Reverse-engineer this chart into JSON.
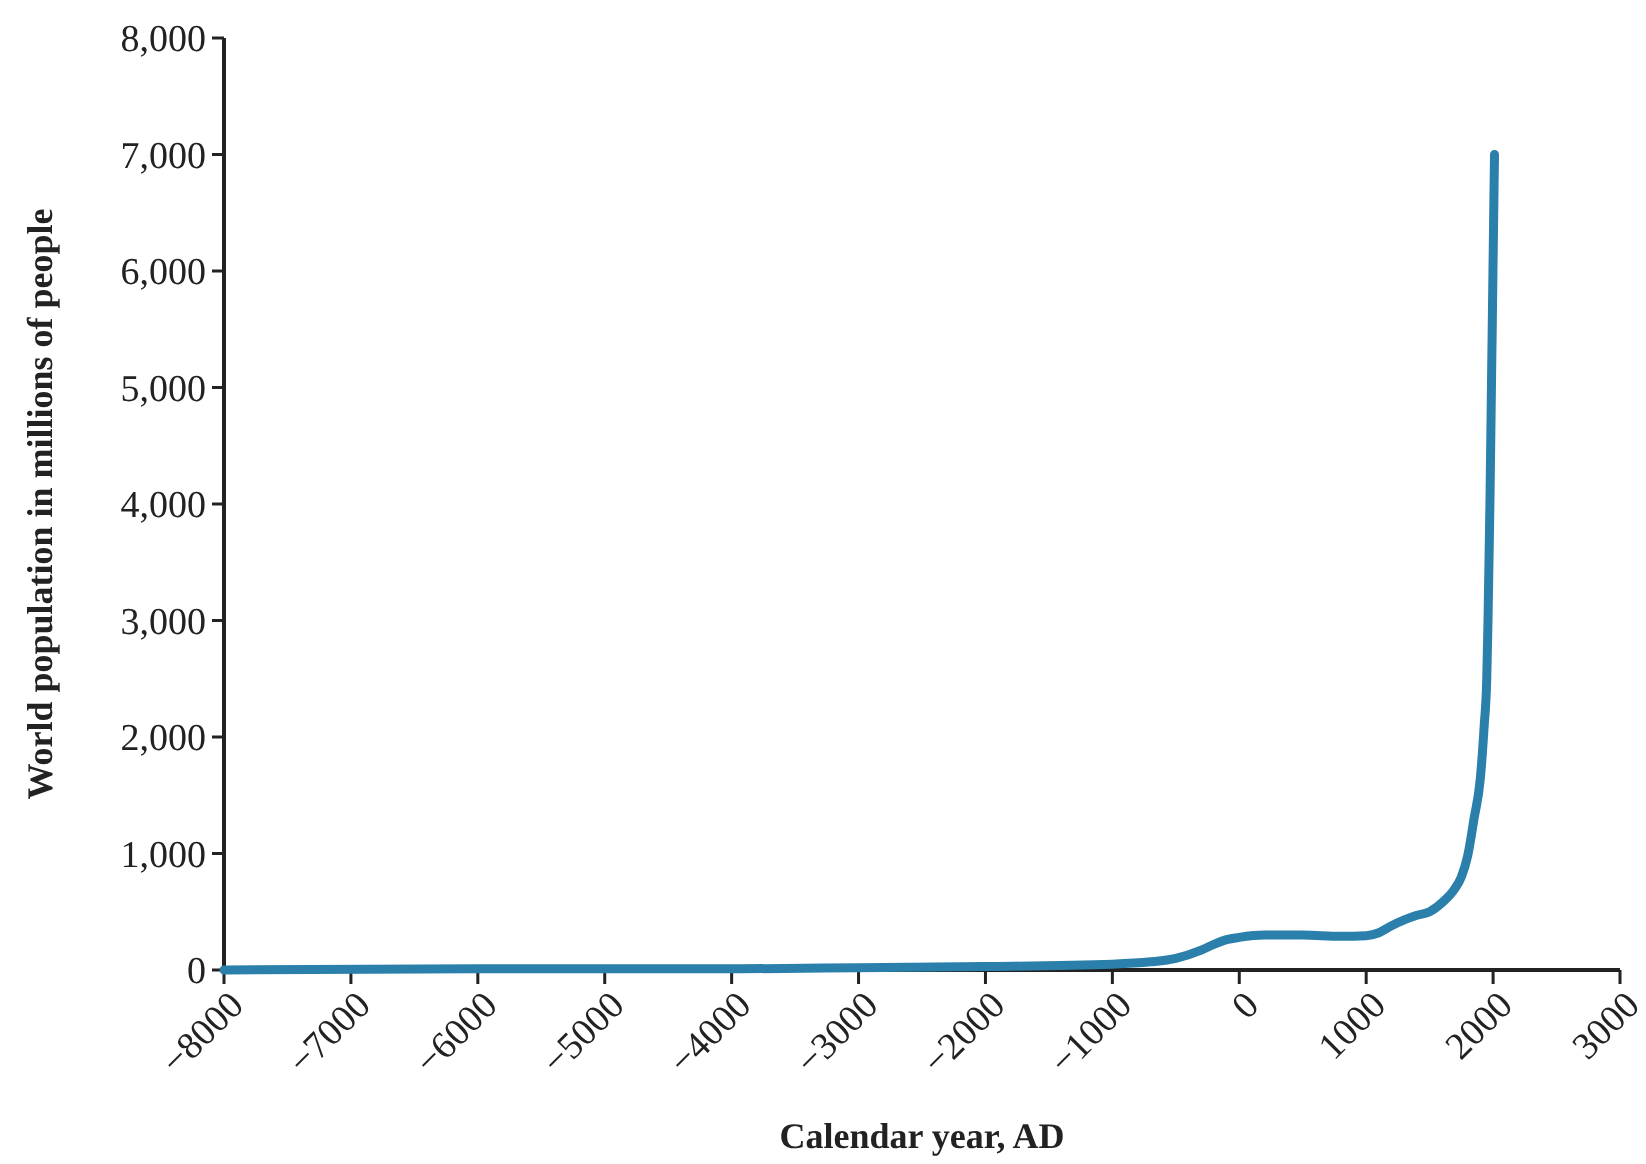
{
  "chart_data": {
    "type": "line",
    "xlabel": "Calendar year, AD",
    "ylabel": "World population in millions of people",
    "x": [
      -8000,
      -6000,
      -5000,
      -4000,
      -3000,
      -2000,
      -1000,
      -700,
      -500,
      -300,
      -200,
      -100,
      0,
      200,
      500,
      800,
      1000,
      1100,
      1200,
      1300,
      1400,
      1500,
      1600,
      1700,
      1750,
      1800,
      1850,
      1900,
      1930,
      1950,
      1960,
      1975,
      1987,
      1999,
      2011
    ],
    "series": [
      {
        "color": "#2a7fab",
        "values": [
          0,
          10,
          10,
          10,
          20,
          30,
          50,
          70,
          100,
          170,
          220,
          260,
          280,
          300,
          300,
          290,
          295,
          320,
          380,
          430,
          470,
          500,
          580,
          700,
          800,
          980,
          1300,
          1650,
          2100,
          2500,
          3000,
          4000,
          5000,
          6000,
          7000
        ]
      }
    ],
    "xlim": [
      -8000,
      3000
    ],
    "xticks": [
      {
        "value": -8000,
        "label": "−8000"
      },
      {
        "value": -7000,
        "label": "−7000"
      },
      {
        "value": -6000,
        "label": "−6000"
      },
      {
        "value": -5000,
        "label": "−5000"
      },
      {
        "value": -4000,
        "label": "−4000"
      },
      {
        "value": -3000,
        "label": "−3000"
      },
      {
        "value": -2000,
        "label": "−2000"
      },
      {
        "value": -1000,
        "label": "−1000"
      },
      0,
      1000,
      2000,
      3000
    ],
    "ylim": [
      0,
      8000
    ],
    "yticks": [
      0,
      {
        "value": 1000,
        "label": "1,000"
      },
      {
        "value": 2000,
        "label": "2,000"
      },
      {
        "value": 3000,
        "label": "3,000"
      },
      {
        "value": 4000,
        "label": "4,000"
      },
      {
        "value": 5000,
        "label": "5,000"
      },
      {
        "value": 6000,
        "label": "6,000"
      },
      {
        "value": 7000,
        "label": "7,000"
      },
      {
        "value": 8000,
        "label": "8,000"
      }
    ],
    "grid": false,
    "marker": "none",
    "line_style": "solid"
  }
}
